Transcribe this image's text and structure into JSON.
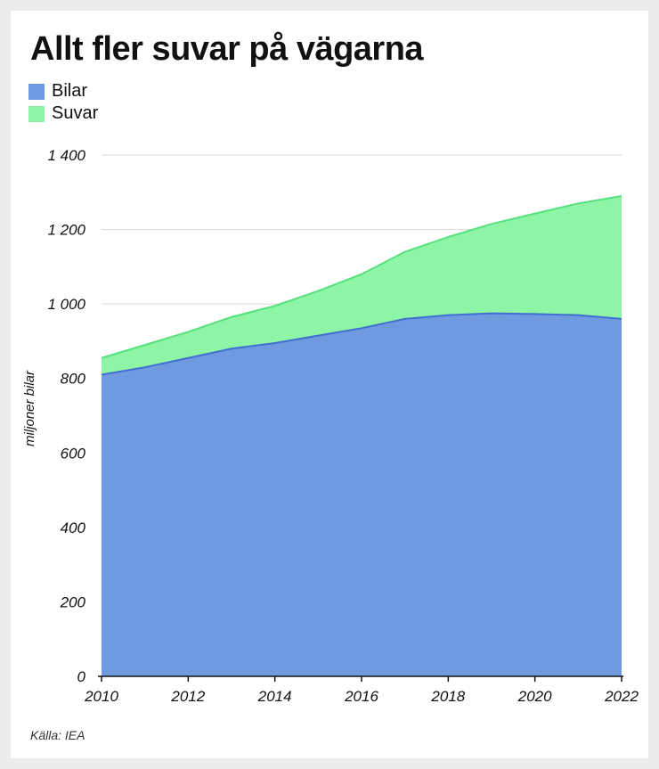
{
  "chart_data": {
    "type": "area",
    "stacked": true,
    "title": "Allt fler suvar på vägarna",
    "ylabel": "miljoner bilar",
    "xlabel": "",
    "source": "Källa: IEA",
    "x": [
      2010,
      2011,
      2012,
      2013,
      2014,
      2015,
      2016,
      2017,
      2018,
      2019,
      2020,
      2021,
      2022
    ],
    "xticks": [
      "2010",
      "2012",
      "2014",
      "2016",
      "2018",
      "2020",
      "2022"
    ],
    "xtick_values": [
      2010,
      2012,
      2014,
      2016,
      2018,
      2020,
      2022
    ],
    "yticks": [
      "0",
      "200",
      "400",
      "600",
      "800",
      "1 000",
      "1 200",
      "1 400"
    ],
    "ytick_values": [
      0,
      200,
      400,
      600,
      800,
      1000,
      1200,
      1400
    ],
    "xlim": [
      2010,
      2022
    ],
    "ylim": [
      0,
      1400
    ],
    "grid": true,
    "legend_position": "top-left",
    "series": [
      {
        "name": "Bilar",
        "color": "#6f9ae0",
        "line_color": "#3f6fd0",
        "values": [
          810,
          830,
          855,
          880,
          895,
          915,
          935,
          960,
          970,
          975,
          973,
          970,
          960
        ]
      },
      {
        "name": "Suvar",
        "color": "#8ef5a6",
        "line_color": "#57e07e",
        "values": [
          45,
          60,
          70,
          85,
          100,
          120,
          145,
          180,
          210,
          240,
          270,
          300,
          330
        ]
      }
    ]
  }
}
